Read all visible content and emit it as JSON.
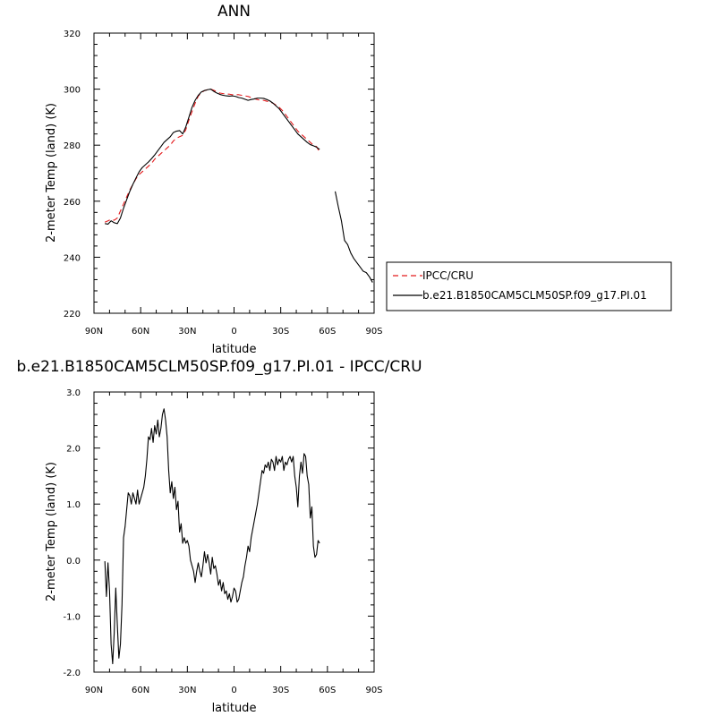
{
  "chart_data": [
    {
      "type": "line",
      "title": "ANN",
      "xlabel": "latitude",
      "ylabel": "2-meter Temp (land) (K)",
      "x_tick_labels": [
        "90N",
        "60N",
        "30N",
        "0",
        "30S",
        "60S",
        "90S"
      ],
      "x_tick_values": [
        90,
        60,
        30,
        0,
        -30,
        -60,
        -90
      ],
      "xlim": [
        90,
        -90
      ],
      "y_tick_labels": [
        "220",
        "240",
        "260",
        "280",
        "300",
        "320"
      ],
      "y_tick_values": [
        220,
        240,
        260,
        280,
        300,
        320
      ],
      "ylim": [
        220,
        320
      ],
      "grid": false,
      "legend_position": "right",
      "series": [
        {
          "name": "IPCC/CRU",
          "color": "#e41a1c",
          "dash": "dashed",
          "x": [
            83,
            81,
            79,
            77,
            75,
            73,
            71,
            69,
            67,
            65,
            63,
            61,
            59,
            57,
            55,
            53,
            51,
            49,
            47,
            45,
            43,
            41,
            39,
            37,
            35,
            33,
            31,
            29,
            27,
            25,
            23,
            21,
            19,
            17,
            15,
            13,
            11,
            9,
            7,
            5,
            3,
            1,
            -1,
            -3,
            -5,
            -7,
            -9,
            -11,
            -13,
            -15,
            -17,
            -19,
            -21,
            -23,
            -25,
            -27,
            -29,
            -31,
            -33,
            -35,
            -37,
            -39,
            -41,
            -43,
            -45,
            -47,
            -49,
            -51,
            -53,
            -55
          ],
          "y": [
            252.5,
            253.0,
            253.5,
            253.2,
            254.0,
            256.5,
            259.0,
            261.5,
            264.0,
            266.0,
            268.0,
            269.5,
            270.5,
            271.5,
            272.5,
            273.5,
            275.0,
            276.0,
            277.0,
            278.0,
            279.0,
            280.0,
            281.5,
            282.5,
            283.0,
            283.5,
            285.5,
            289.0,
            292.0,
            295.0,
            297.5,
            298.7,
            299.5,
            299.8,
            300.0,
            299.6,
            299.0,
            298.6,
            298.4,
            298.2,
            298.2,
            298.0,
            298.0,
            298.0,
            297.8,
            297.6,
            297.4,
            297.0,
            296.6,
            296.3,
            296.0,
            296.0,
            295.7,
            295.4,
            295.0,
            294.3,
            293.5,
            292.4,
            291.0,
            289.5,
            288.0,
            286.5,
            285.0,
            284.0,
            283.0,
            282.0,
            281.0,
            280.0,
            279.5,
            277.5
          ]
        },
        {
          "name": "b.e21.B1850CAM5CLM50SP.f09_g17.PI.01",
          "color": "#000000",
          "dash": "solid",
          "x": [
            83,
            81,
            79,
            77,
            75,
            73,
            71,
            69,
            67,
            65,
            63,
            61,
            59,
            57,
            55,
            53,
            51,
            49,
            47,
            45,
            43,
            41,
            39,
            37,
            35,
            33,
            31,
            29,
            27,
            25,
            23,
            21,
            19,
            17,
            15,
            13,
            11,
            9,
            7,
            5,
            3,
            1,
            -1,
            -3,
            -5,
            -7,
            -9,
            -11,
            -13,
            -15,
            -17,
            -19,
            -21,
            -23,
            -25,
            -27,
            -29,
            -31,
            -33,
            -35,
            -37,
            -39,
            -41,
            -43,
            -45,
            -47,
            -49,
            -51,
            -53,
            -55,
            null,
            -65,
            -67,
            -69,
            -71,
            -73,
            -75,
            -77,
            -79,
            -81,
            -83,
            -85,
            -87,
            -89
          ],
          "y": [
            252.0,
            251.8,
            253.0,
            252.3,
            252.0,
            254.0,
            257.5,
            260.5,
            263.5,
            266.0,
            268.3,
            270.5,
            272.0,
            273.0,
            274.0,
            275.2,
            276.5,
            278.0,
            279.5,
            281.0,
            282.0,
            283.0,
            284.5,
            285.0,
            285.2,
            284.0,
            286.5,
            290.0,
            293.5,
            296.0,
            297.8,
            299.0,
            299.5,
            299.8,
            300.0,
            299.2,
            298.6,
            298.1,
            297.8,
            297.6,
            297.5,
            297.6,
            297.4,
            297.0,
            296.8,
            296.4,
            296.0,
            296.3,
            296.5,
            296.8,
            296.8,
            296.7,
            296.3,
            295.8,
            295.0,
            294.0,
            293.0,
            291.5,
            290.0,
            288.5,
            287.0,
            285.5,
            284.0,
            283.0,
            282.0,
            281.0,
            280.2,
            279.8,
            279.3,
            278.5,
            null,
            263.5,
            258.0,
            253.0,
            246.0,
            244.5,
            241.5,
            239.5,
            238.0,
            236.5,
            235.0,
            234.5,
            233.0,
            231.0
          ]
        }
      ]
    },
    {
      "type": "line",
      "title": "b.e21.B1850CAM5CLM50SP.f09_g17.PI.01 - IPCC/CRU",
      "xlabel": "latitude",
      "ylabel": "2-meter Temp (land) (K)",
      "x_tick_labels": [
        "90N",
        "60N",
        "30N",
        "0",
        "30S",
        "60S",
        "90S"
      ],
      "x_tick_values": [
        90,
        60,
        30,
        0,
        -30,
        -60,
        -90
      ],
      "xlim": [
        90,
        -90
      ],
      "y_tick_labels": [
        "-2.0",
        "-1.0",
        "0.0",
        "1.0",
        "2.0",
        "3.0"
      ],
      "y_tick_values": [
        -2,
        -1,
        0,
        1,
        2,
        3
      ],
      "ylim": [
        -2,
        3
      ],
      "grid": false,
      "series": [
        {
          "color": "#000000",
          "dash": "solid",
          "x": [
            83,
            82,
            81,
            80,
            79,
            78,
            77,
            76,
            75,
            74,
            73,
            72,
            71,
            70,
            69,
            68,
            67,
            66,
            65,
            64,
            63,
            62,
            61,
            60,
            59,
            58,
            57,
            56,
            55,
            54,
            53,
            52,
            51,
            50,
            49,
            48,
            47,
            46,
            45,
            44,
            43,
            42,
            41,
            40,
            39,
            38,
            37,
            36,
            35,
            34,
            33,
            32,
            31,
            30,
            29,
            28,
            27,
            26,
            25,
            24,
            23,
            22,
            21,
            20,
            19,
            18,
            17,
            16,
            15,
            14,
            13,
            12,
            11,
            10,
            9,
            8,
            7,
            6,
            5,
            4,
            3,
            2,
            1,
            0,
            -1,
            -2,
            -3,
            -4,
            -5,
            -6,
            -7,
            -8,
            -9,
            -10,
            -11,
            -12,
            -13,
            -14,
            -15,
            -16,
            -17,
            -18,
            -19,
            -20,
            -21,
            -22,
            -23,
            -24,
            -25,
            -26,
            -27,
            -28,
            -29,
            -30,
            -31,
            -32,
            -33,
            -34,
            -35,
            -36,
            -37,
            -38,
            -39,
            -40,
            -41,
            -42,
            -43,
            -44,
            -45,
            -46,
            -47,
            -48,
            -49,
            -50,
            -51,
            -52,
            -53,
            -54,
            -55
          ],
          "y": [
            -0.02,
            -0.65,
            -0.05,
            -0.55,
            -1.5,
            -1.85,
            -1.3,
            -0.5,
            -1.15,
            -1.75,
            -1.5,
            -0.8,
            0.4,
            0.6,
            0.9,
            1.2,
            1.15,
            1.0,
            1.2,
            1.1,
            1.0,
            1.25,
            1.0,
            1.1,
            1.2,
            1.3,
            1.5,
            1.8,
            2.2,
            2.15,
            2.35,
            2.1,
            2.4,
            2.25,
            2.5,
            2.2,
            2.35,
            2.6,
            2.7,
            2.5,
            2.2,
            1.6,
            1.2,
            1.4,
            1.1,
            1.3,
            0.9,
            1.05,
            0.5,
            0.65,
            0.3,
            0.4,
            0.3,
            0.35,
            0.25,
            0.0,
            -0.1,
            -0.2,
            -0.4,
            -0.2,
            -0.05,
            -0.2,
            -0.3,
            -0.1,
            0.15,
            -0.05,
            0.1,
            -0.05,
            -0.25,
            0.05,
            -0.15,
            -0.1,
            -0.25,
            -0.45,
            -0.35,
            -0.55,
            -0.4,
            -0.6,
            -0.55,
            -0.7,
            -0.6,
            -0.75,
            -0.65,
            -0.5,
            -0.55,
            -0.75,
            -0.7,
            -0.55,
            -0.4,
            -0.3,
            -0.1,
            0.05,
            0.25,
            0.15,
            0.4,
            0.55,
            0.7,
            0.85,
            1.0,
            1.2,
            1.4,
            1.6,
            1.55,
            1.7,
            1.65,
            1.75,
            1.6,
            1.8,
            1.75,
            1.6,
            1.85,
            1.7,
            1.8,
            1.75,
            1.85,
            1.6,
            1.75,
            1.7,
            1.8,
            1.85,
            1.75,
            1.85,
            1.5,
            1.3,
            0.95,
            1.5,
            1.75,
            1.55,
            1.9,
            1.85,
            1.5,
            1.35,
            0.75,
            0.95,
            0.25,
            0.05,
            0.1,
            0.35,
            0.3
          ]
        }
      ]
    }
  ]
}
